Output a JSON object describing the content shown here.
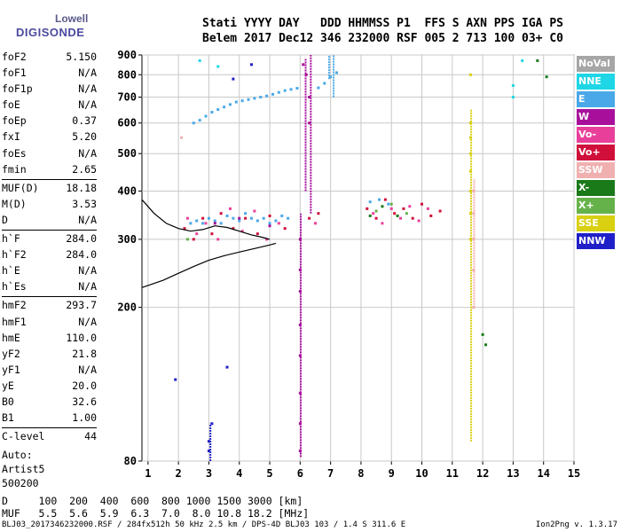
{
  "logo": {
    "top": "Lowell",
    "bottom": "DIGISONDE"
  },
  "header": {
    "line1": "Stati YYYY DAY   DDD HHMMSS P1  FFS S AXN PPS IGA PS",
    "line2": "Belem 2017 Dec12 346 232000 RSF 005 2 713 100 03+ C0"
  },
  "params": [
    {
      "name": "foF2",
      "value": "5.150"
    },
    {
      "name": "foF1",
      "value": "N/A"
    },
    {
      "name": "foF1p",
      "value": "N/A"
    },
    {
      "name": "foE",
      "value": "N/A"
    },
    {
      "name": "foEp",
      "value": "0.37"
    },
    {
      "name": "fxI",
      "value": "5.20"
    },
    {
      "name": "foEs",
      "value": "N/A"
    },
    {
      "name": "fmin",
      "value": "2.65"
    },
    {
      "name": "MUF(D)",
      "value": "18.18"
    },
    {
      "name": "M(D)",
      "value": "3.53"
    },
    {
      "name": "D",
      "value": "N/A"
    },
    {
      "name": "h`F",
      "value": "284.0"
    },
    {
      "name": "h`F2",
      "value": "284.0"
    },
    {
      "name": "h`E",
      "value": "N/A"
    },
    {
      "name": "h`Es",
      "value": "N/A"
    },
    {
      "name": "hmF2",
      "value": "293.7"
    },
    {
      "name": "hmF1",
      "value": "N/A"
    },
    {
      "name": "hmE",
      "value": "110.0"
    },
    {
      "name": "yF2",
      "value": "21.8"
    },
    {
      "name": "yF1",
      "value": "N/A"
    },
    {
      "name": "yE",
      "value": "20.0"
    },
    {
      "name": "B0",
      "value": "32.6"
    },
    {
      "name": "B1",
      "value": "1.00"
    },
    {
      "name": "C-level",
      "value": "44"
    }
  ],
  "auto": {
    "line1": "Auto:",
    "line2": "Artist5",
    "line3": "500200"
  },
  "legend": [
    {
      "label": "NoVal",
      "color": "#a6a6a6"
    },
    {
      "label": "NNE",
      "color": "#1ed6e6"
    },
    {
      "label": "E",
      "color": "#4aa8e8"
    },
    {
      "label": "W",
      "color": "#a8109c"
    },
    {
      "label": "Vo-",
      "color": "#e8409a"
    },
    {
      "label": "Vo+",
      "color": "#d0103a"
    },
    {
      "label": "SSW",
      "color": "#f0b0b0"
    },
    {
      "label": "X-",
      "color": "#1a7a1a"
    },
    {
      "label": "X+",
      "color": "#66b24a"
    },
    {
      "label": "SSE",
      "color": "#d8d010"
    },
    {
      "label": "NNW",
      "color": "#2020c8"
    }
  ],
  "bottom": {
    "d_row": "D     100  200  400  600  800 1000 1500 3000 [km]",
    "muf_row": "MUF   5.5  5.6  5.9  6.3  7.0  8.0 10.8 18.2 [MHz]"
  },
  "footer": {
    "left": "BLJ03_2017346232000.RSF / 284fx512h 50 kHz 2.5 km / DPS-4D BLJ03 103 / 1.4 S 311.6 E",
    "right": "Ion2Png v. 1.3.17"
  },
  "chart_data": {
    "type": "scatter",
    "x_ticks": [
      1,
      2,
      3,
      4,
      5,
      6,
      7,
      8,
      9,
      10,
      11,
      12,
      13,
      14,
      15
    ],
    "y_ticks": [
      80,
      200,
      300,
      400,
      500,
      600,
      700,
      800,
      900
    ],
    "xlim": [
      0.8,
      15.0
    ],
    "ylim": [
      80,
      900
    ],
    "yscale": "log",
    "grid": true,
    "legend_position": "right",
    "series": [
      {
        "name": "E",
        "color": "#4aa8e8",
        "points": [
          [
            2.5,
            600
          ],
          [
            2.7,
            610
          ],
          [
            2.9,
            625
          ],
          [
            3.1,
            640
          ],
          [
            3.3,
            650
          ],
          [
            3.5,
            660
          ],
          [
            3.7,
            670
          ],
          [
            3.9,
            680
          ],
          [
            4.1,
            685
          ],
          [
            4.3,
            690
          ],
          [
            4.5,
            695
          ],
          [
            4.7,
            700
          ],
          [
            4.9,
            705
          ],
          [
            5.1,
            712
          ],
          [
            5.3,
            720
          ],
          [
            5.5,
            728
          ],
          [
            5.7,
            733
          ],
          [
            5.9,
            738
          ],
          [
            6.6,
            740
          ],
          [
            6.8,
            760
          ],
          [
            7.0,
            790
          ],
          [
            7.2,
            810
          ],
          [
            2.4,
            330
          ],
          [
            2.6,
            335
          ],
          [
            2.8,
            330
          ],
          [
            3.0,
            340
          ],
          [
            3.2,
            335
          ],
          [
            3.4,
            330
          ],
          [
            3.6,
            345
          ],
          [
            3.8,
            340
          ],
          [
            4.0,
            335
          ],
          [
            4.2,
            350
          ],
          [
            4.4,
            340
          ],
          [
            4.6,
            335
          ],
          [
            4.8,
            340
          ],
          [
            5.0,
            330
          ],
          [
            5.2,
            335
          ],
          [
            5.4,
            345
          ],
          [
            5.6,
            340
          ],
          [
            8.3,
            375
          ],
          [
            8.6,
            380
          ],
          [
            8.9,
            370
          ]
        ]
      },
      {
        "name": "W",
        "color": "#a8109c",
        "points": [
          [
            6.0,
            300
          ],
          [
            6.0,
            250
          ],
          [
            6.0,
            220
          ],
          [
            6.0,
            180
          ],
          [
            6.0,
            150
          ],
          [
            6.0,
            120
          ],
          [
            6.0,
            100
          ],
          [
            6.0,
            85
          ],
          [
            6.1,
            850
          ],
          [
            6.2,
            800
          ],
          [
            6.3,
            700
          ],
          [
            6.3,
            600
          ],
          [
            3.2,
            330
          ],
          [
            4.0,
            340
          ],
          [
            5.0,
            325
          ]
        ]
      },
      {
        "name": "Vo+",
        "color": "#d0103a",
        "points": [
          [
            2.2,
            320
          ],
          [
            2.5,
            300
          ],
          [
            2.8,
            340
          ],
          [
            3.1,
            310
          ],
          [
            3.4,
            350
          ],
          [
            3.8,
            320
          ],
          [
            4.2,
            340
          ],
          [
            4.6,
            310
          ],
          [
            5.0,
            345
          ],
          [
            5.5,
            320
          ],
          [
            6.3,
            340
          ],
          [
            6.6,
            350
          ],
          [
            8.2,
            360
          ],
          [
            8.5,
            340
          ],
          [
            8.8,
            380
          ],
          [
            9.1,
            350
          ],
          [
            9.4,
            360
          ],
          [
            9.7,
            340
          ],
          [
            10.0,
            370
          ],
          [
            10.3,
            345
          ],
          [
            10.6,
            355
          ]
        ]
      },
      {
        "name": "Vo-",
        "color": "#e8409a",
        "points": [
          [
            2.3,
            340
          ],
          [
            2.6,
            310
          ],
          [
            2.9,
            330
          ],
          [
            3.3,
            300
          ],
          [
            3.7,
            360
          ],
          [
            4.1,
            315
          ],
          [
            4.5,
            355
          ],
          [
            4.9,
            300
          ],
          [
            5.3,
            330
          ],
          [
            6.5,
            330
          ],
          [
            8.4,
            350
          ],
          [
            8.7,
            330
          ],
          [
            9.0,
            360
          ],
          [
            9.3,
            340
          ],
          [
            9.6,
            365
          ],
          [
            9.9,
            335
          ],
          [
            10.2,
            360
          ]
        ]
      },
      {
        "name": "X-",
        "color": "#1a7a1a",
        "points": [
          [
            8.3,
            345
          ],
          [
            8.7,
            365
          ],
          [
            9.2,
            345
          ],
          [
            12.1,
            160
          ],
          [
            13.8,
            870
          ],
          [
            12.0,
            170
          ],
          [
            14.1,
            790
          ]
        ]
      },
      {
        "name": "X+",
        "color": "#66b24a",
        "points": [
          [
            8.5,
            355
          ],
          [
            9.0,
            370
          ],
          [
            9.5,
            350
          ],
          [
            2.3,
            300
          ]
        ]
      },
      {
        "name": "SSE",
        "color": "#d8d010",
        "points": [
          [
            11.6,
            300
          ],
          [
            11.6,
            350
          ],
          [
            11.6,
            400
          ],
          [
            11.6,
            450
          ],
          [
            11.6,
            500
          ],
          [
            11.6,
            550
          ],
          [
            11.6,
            600
          ],
          [
            11.6,
            800
          ]
        ]
      },
      {
        "name": "SSW",
        "color": "#f0b0b0",
        "points": [
          [
            11.7,
            200
          ],
          [
            11.7,
            250
          ],
          [
            11.7,
            300
          ],
          [
            11.7,
            350
          ],
          [
            11.7,
            400
          ],
          [
            2.1,
            550
          ]
        ]
      },
      {
        "name": "NNE",
        "color": "#1ed6e6",
        "points": [
          [
            2.7,
            870
          ],
          [
            3.3,
            840
          ],
          [
            13.0,
            750
          ],
          [
            13.0,
            700
          ],
          [
            13.3,
            870
          ]
        ]
      },
      {
        "name": "NNW",
        "color": "#2020c8",
        "points": [
          [
            3.0,
            85
          ],
          [
            3.0,
            90
          ],
          [
            3.1,
            100
          ],
          [
            3.8,
            780
          ],
          [
            4.4,
            850
          ],
          [
            3.6,
            140
          ],
          [
            1.9,
            130
          ]
        ]
      }
    ],
    "curves": [
      {
        "name": "profile",
        "color": "#000000",
        "points": [
          [
            0.8,
            225
          ],
          [
            1.5,
            235
          ],
          [
            2.0,
            245
          ],
          [
            2.5,
            255
          ],
          [
            3.0,
            265
          ],
          [
            3.5,
            272
          ],
          [
            4.0,
            278
          ],
          [
            4.5,
            284
          ],
          [
            5.0,
            290
          ],
          [
            5.2,
            293
          ]
        ]
      },
      {
        "name": "trace",
        "color": "#000000",
        "points": [
          [
            0.8,
            380
          ],
          [
            1.2,
            350
          ],
          [
            1.6,
            330
          ],
          [
            2.0,
            320
          ],
          [
            2.4,
            315
          ],
          [
            2.8,
            318
          ],
          [
            3.2,
            325
          ],
          [
            3.6,
            322
          ],
          [
            4.0,
            315
          ],
          [
            4.4,
            308
          ],
          [
            4.8,
            303
          ],
          [
            5.0,
            300
          ]
        ]
      }
    ],
    "vertical_traces": [
      {
        "color": "#a8109c",
        "x": 6.02,
        "y_from": 82,
        "y_to": 350
      },
      {
        "color": "#a8109c",
        "x": 6.35,
        "y_from": 350,
        "y_to": 900
      },
      {
        "color": "#a8109c",
        "x": 6.18,
        "y_from": 400,
        "y_to": 880
      },
      {
        "color": "#4aa8e8",
        "x": 7.1,
        "y_from": 700,
        "y_to": 900
      },
      {
        "color": "#4aa8e8",
        "x": 6.95,
        "y_from": 780,
        "y_to": 900
      },
      {
        "color": "#d8d010",
        "x": 11.62,
        "y_from": 90,
        "y_to": 650
      },
      {
        "color": "#f0b0b0",
        "x": 11.72,
        "y_from": 200,
        "y_to": 430
      },
      {
        "color": "#2020c8",
        "x": 3.05,
        "y_from": 80,
        "y_to": 100
      }
    ]
  }
}
